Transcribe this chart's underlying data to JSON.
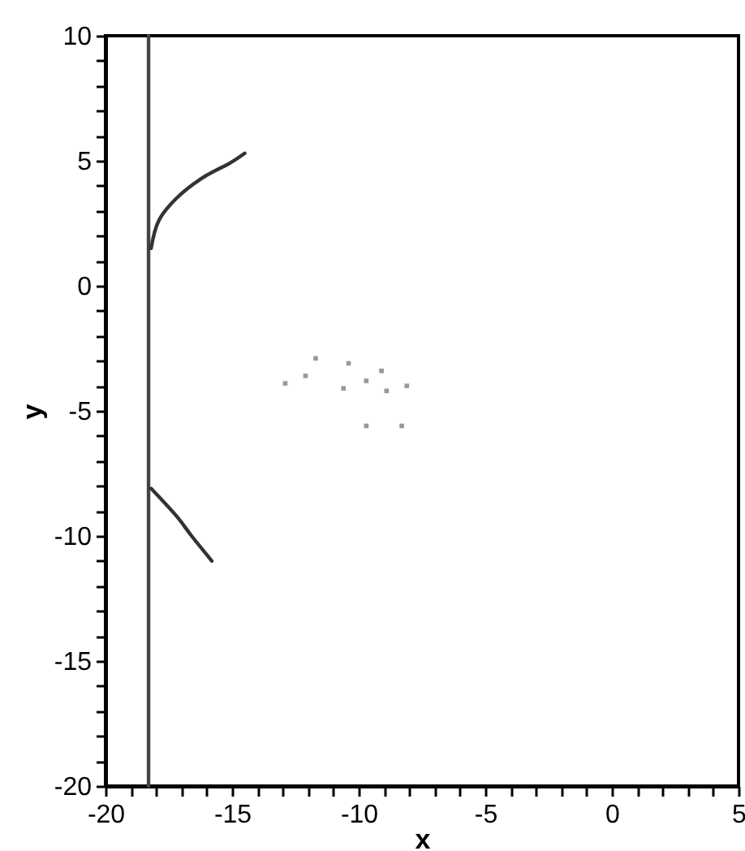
{
  "chart_data": {
    "type": "line",
    "xlabel": "x",
    "ylabel": "y",
    "xlim": [
      -20,
      5
    ],
    "ylim": [
      -20,
      10
    ],
    "xticks": [
      -20,
      {
        "value": -19,
        "label": null
      },
      {
        "value": -18,
        "label": null
      },
      {
        "value": -17,
        "label": null
      },
      {
        "value": -16,
        "label": null
      },
      -15,
      {
        "value": -14,
        "label": null
      },
      {
        "value": -13,
        "label": null
      },
      {
        "value": -12,
        "label": null
      },
      {
        "value": -11,
        "label": null
      },
      -10,
      {
        "value": -9,
        "label": null
      },
      {
        "value": -8,
        "label": null
      },
      {
        "value": -7,
        "label": null
      },
      {
        "value": -6,
        "label": null
      },
      -5,
      {
        "value": -4,
        "label": null
      },
      {
        "value": -3,
        "label": null
      },
      {
        "value": -2,
        "label": null
      },
      {
        "value": -1,
        "label": null
      },
      0,
      {
        "value": 1,
        "label": null
      },
      {
        "value": 2,
        "label": null
      },
      {
        "value": 3,
        "label": null
      },
      {
        "value": 4,
        "label": null
      },
      5
    ],
    "yticks": [
      -20,
      {
        "value": -19,
        "label": null
      },
      {
        "value": -18,
        "label": null
      },
      {
        "value": -17,
        "label": null
      },
      {
        "value": -16,
        "label": null
      },
      -15,
      {
        "value": -14,
        "label": null
      },
      {
        "value": -13,
        "label": null
      },
      {
        "value": -12,
        "label": null
      },
      {
        "value": -11,
        "label": null
      },
      -10,
      {
        "value": -9,
        "label": null
      },
      {
        "value": -8,
        "label": null
      },
      {
        "value": -7,
        "label": null
      },
      {
        "value": -6,
        "label": null
      },
      -5,
      {
        "value": -4,
        "label": null
      },
      {
        "value": -3,
        "label": null
      },
      {
        "value": -2,
        "label": null
      },
      {
        "value": -1,
        "label": null
      },
      0,
      {
        "value": 1,
        "label": null
      },
      {
        "value": 2,
        "label": null
      },
      {
        "value": 3,
        "label": null
      },
      {
        "value": 4,
        "label": null
      },
      5,
      {
        "value": 6,
        "label": null
      },
      {
        "value": 7,
        "label": null
      },
      {
        "value": 8,
        "label": null
      },
      {
        "value": 9,
        "label": null
      },
      10
    ],
    "grid": false,
    "marker": "none",
    "line_style": "solid",
    "series": [
      {
        "color": "#444444",
        "x": [
          -18.3,
          -18.3
        ],
        "values": [
          10,
          -20
        ]
      },
      {
        "color": "#333333",
        "x": [
          -18.2,
          -17.9,
          -17.2,
          -16.2,
          -15.1,
          -14.5
        ],
        "values": [
          1.5,
          2.6,
          3.5,
          4.3,
          4.9,
          5.3
        ]
      },
      {
        "color": "#333333",
        "x": [
          -18.2,
          -17.2,
          -16.6,
          -15.8
        ],
        "values": [
          -8.1,
          -9.2,
          -10.0,
          -11.0
        ]
      },
      {
        "type": "scatter",
        "marker": "square",
        "color": "#999999",
        "x": [
          -12.9,
          -12.1,
          -11.7,
          -10.4,
          -9.1,
          -8.1,
          -10.6,
          -9.7,
          -8.9,
          -9.7,
          -8.3
        ],
        "values": [
          -3.9,
          -3.6,
          -2.9,
          -3.1,
          -3.4,
          -4.0,
          -4.1,
          -3.8,
          -4.2,
          -5.6,
          -5.6
        ]
      }
    ]
  }
}
